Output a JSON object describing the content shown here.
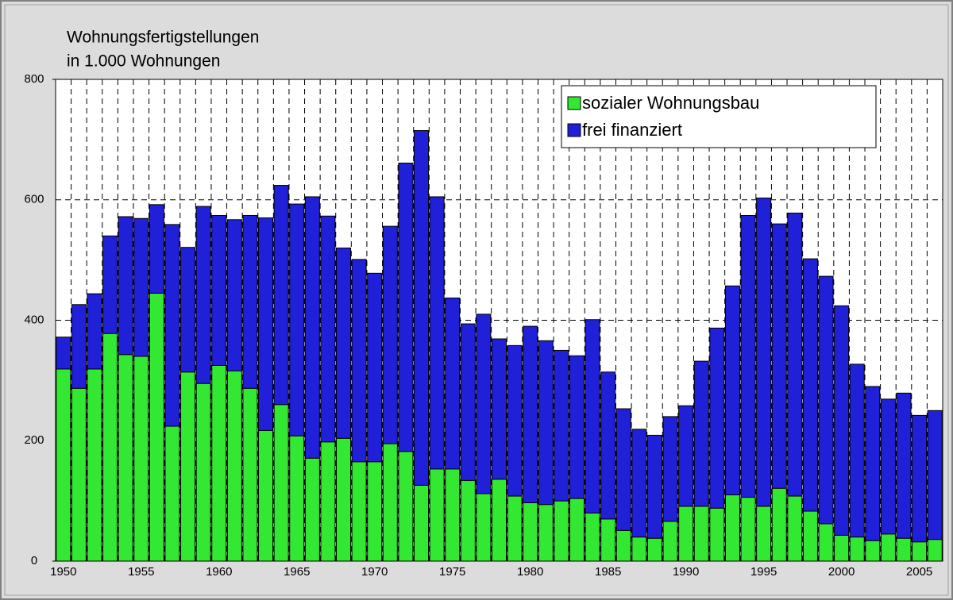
{
  "chart_data": {
    "type": "stacked_bar",
    "title": "Wohnungsfertigstellungen",
    "subtitle": "in 1.000 Wohnungen",
    "categories": [
      "1950",
      null,
      null,
      null,
      null,
      "1955",
      null,
      null,
      null,
      null,
      "1960",
      null,
      null,
      null,
      null,
      "1965",
      null,
      null,
      null,
      null,
      "1970",
      null,
      null,
      null,
      null,
      "1975",
      null,
      null,
      null,
      null,
      "1980",
      null,
      null,
      null,
      null,
      "1985",
      null,
      null,
      null,
      null,
      "1990",
      null,
      null,
      null,
      null,
      "1995",
      null,
      null,
      null,
      null,
      "2000",
      null,
      null,
      null,
      null,
      "2005",
      null
    ],
    "series": [
      {
        "name": "sozialer Wohnungsbau",
        "color": "#33e833",
        "values": [
          319,
          287,
          319,
          378,
          343,
          340,
          445,
          224,
          314,
          295,
          325,
          316,
          287,
          217,
          260,
          208,
          171,
          198,
          204,
          165,
          165,
          195,
          182,
          126,
          153,
          153,
          134,
          112,
          136,
          108,
          97,
          94,
          100,
          104,
          80,
          70,
          51,
          40,
          38,
          66,
          91,
          91,
          88,
          110,
          106,
          91,
          121,
          108,
          83,
          62,
          43,
          40,
          34,
          45,
          38,
          32,
          36
        ]
      },
      {
        "name": "frei finanziert",
        "color": "#2020d8",
        "values": [
          53,
          139,
          125,
          162,
          229,
          229,
          147,
          335,
          207,
          294,
          249,
          251,
          287,
          353,
          364,
          385,
          434,
          375,
          316,
          336,
          313,
          361,
          479,
          589,
          452,
          284,
          260,
          298,
          233,
          250,
          293,
          272,
          250,
          237,
          321,
          244,
          202,
          179,
          171,
          174,
          167,
          241,
          299,
          347,
          468,
          512,
          439,
          470,
          419,
          411,
          381,
          287,
          256,
          224,
          241,
          210,
          214
        ]
      }
    ],
    "ylim": [
      0,
      800
    ],
    "yticks": [
      0,
      200,
      400,
      600,
      800
    ],
    "grid": true,
    "legend": "upper right"
  }
}
